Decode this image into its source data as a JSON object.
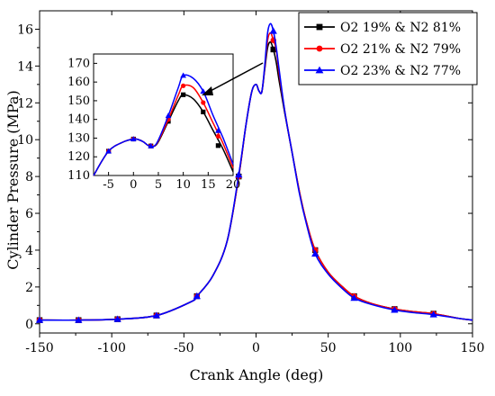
{
  "chart_data": {
    "type": "line",
    "xlabel": "Crank Angle (deg)",
    "ylabel": "Cylinder Pressure (MPa)",
    "xlim": [
      -150,
      150
    ],
    "ylim": [
      -0.5,
      17
    ],
    "x_ticks": [
      -150,
      -100,
      -50,
      0,
      50,
      100,
      150
    ],
    "y_ticks": [
      0,
      2,
      4,
      6,
      8,
      10,
      12,
      14,
      16
    ],
    "grid": false,
    "legend_position": "top-right",
    "series": [
      {
        "name": "O2 19% & N2 81%",
        "color": "#000000",
        "marker": "square",
        "points": [
          [
            -150,
            0.2
          ],
          [
            -123,
            0.2
          ],
          [
            -96,
            0.25
          ],
          [
            -69,
            0.45
          ],
          [
            -45,
            1.2
          ],
          [
            -41,
            1.5
          ],
          [
            -30,
            2.6
          ],
          [
            -20,
            4.5
          ],
          [
            -12,
            8.0
          ],
          [
            -7,
            10.8
          ],
          [
            -3,
            12.6
          ],
          [
            0,
            13.0
          ],
          [
            2,
            12.65
          ],
          [
            4,
            12.6
          ],
          [
            6,
            13.8
          ],
          [
            8,
            15.0
          ],
          [
            10,
            15.3
          ],
          [
            12,
            14.9
          ],
          [
            14,
            14.2
          ],
          [
            16,
            13.2
          ],
          [
            20,
            11.4
          ],
          [
            25,
            9.3
          ],
          [
            30,
            7.2
          ],
          [
            35,
            5.5
          ],
          [
            41,
            4.0
          ],
          [
            50,
            2.8
          ],
          [
            60,
            2.0
          ],
          [
            68,
            1.5
          ],
          [
            80,
            1.1
          ],
          [
            96,
            0.8
          ],
          [
            110,
            0.65
          ],
          [
            123,
            0.55
          ],
          [
            140,
            0.3
          ],
          [
            150,
            0.2
          ]
        ]
      },
      {
        "name": "O2 21% & N2 79%",
        "color": "#ff0000",
        "marker": "circle",
        "points": [
          [
            -150,
            0.2
          ],
          [
            -123,
            0.2
          ],
          [
            -96,
            0.25
          ],
          [
            -69,
            0.45
          ],
          [
            -45,
            1.2
          ],
          [
            -41,
            1.5
          ],
          [
            -30,
            2.6
          ],
          [
            -20,
            4.5
          ],
          [
            -12,
            8.0
          ],
          [
            -7,
            10.8
          ],
          [
            -3,
            12.6
          ],
          [
            0,
            13.0
          ],
          [
            2,
            12.65
          ],
          [
            4,
            12.6
          ],
          [
            6,
            13.9
          ],
          [
            8,
            15.4
          ],
          [
            10,
            15.8
          ],
          [
            12,
            15.4
          ],
          [
            14,
            14.9
          ],
          [
            16,
            13.6
          ],
          [
            20,
            11.5
          ],
          [
            25,
            9.3
          ],
          [
            30,
            7.2
          ],
          [
            35,
            5.5
          ],
          [
            41,
            4.0
          ],
          [
            50,
            2.8
          ],
          [
            60,
            2.0
          ],
          [
            68,
            1.5
          ],
          [
            80,
            1.1
          ],
          [
            96,
            0.8
          ],
          [
            110,
            0.65
          ],
          [
            123,
            0.55
          ],
          [
            140,
            0.3
          ],
          [
            150,
            0.2
          ]
        ]
      },
      {
        "name": "O2 23% & N2 77%",
        "color": "#0000ff",
        "marker": "triangle",
        "points": [
          [
            -150,
            0.2
          ],
          [
            -123,
            0.2
          ],
          [
            -96,
            0.25
          ],
          [
            -69,
            0.45
          ],
          [
            -45,
            1.2
          ],
          [
            -41,
            1.5
          ],
          [
            -30,
            2.6
          ],
          [
            -20,
            4.5
          ],
          [
            -12,
            8.1
          ],
          [
            -7,
            10.8
          ],
          [
            -3,
            12.6
          ],
          [
            0,
            13.0
          ],
          [
            2,
            12.65
          ],
          [
            4,
            12.6
          ],
          [
            6,
            14.0
          ],
          [
            8,
            15.8
          ],
          [
            10,
            16.3
          ],
          [
            12,
            15.9
          ],
          [
            14,
            15.0
          ],
          [
            16,
            13.8
          ],
          [
            20,
            11.5
          ],
          [
            25,
            9.3
          ],
          [
            30,
            7.1
          ],
          [
            35,
            5.4
          ],
          [
            41,
            3.8
          ],
          [
            50,
            2.7
          ],
          [
            60,
            1.9
          ],
          [
            68,
            1.4
          ],
          [
            80,
            1.05
          ],
          [
            96,
            0.75
          ],
          [
            110,
            0.6
          ],
          [
            123,
            0.5
          ],
          [
            140,
            0.3
          ],
          [
            150,
            0.2
          ]
        ]
      }
    ],
    "markers_x": [
      -150,
      -123,
      -96,
      -69,
      -41,
      -12,
      12,
      41,
      68,
      96,
      123
    ],
    "inset": {
      "xlim": [
        -8,
        20
      ],
      "ylim": [
        110,
        175
      ],
      "x_ticks": [
        -5,
        0,
        5,
        10,
        15,
        20
      ],
      "y_ticks": [
        110,
        120,
        130,
        140,
        150,
        160,
        170
      ],
      "series": [
        {
          "name": "O2 19% & N2 81%",
          "color": "#000000",
          "marker": "square",
          "points": [
            [
              -8,
              110
            ],
            [
              -5,
              123
            ],
            [
              -2,
              128
            ],
            [
              0,
              129.5
            ],
            [
              1,
              129.2
            ],
            [
              2,
              128
            ],
            [
              3,
              126
            ],
            [
              4,
              125.5
            ],
            [
              5,
              128
            ],
            [
              7,
              139
            ],
            [
              9,
              150
            ],
            [
              10,
              153.2
            ],
            [
              12,
              151
            ],
            [
              14,
              144
            ],
            [
              16,
              134
            ],
            [
              18,
              124
            ],
            [
              20,
              112
            ]
          ],
          "markers": [
            [
              -5,
              123
            ],
            [
              0,
              129.5
            ],
            [
              3.5,
              125.8
            ],
            [
              7,
              139
            ],
            [
              10,
              153.2
            ],
            [
              14,
              144
            ],
            [
              17,
              126
            ]
          ]
        },
        {
          "name": "O2 21% & N2 79%",
          "color": "#ff0000",
          "marker": "circle",
          "points": [
            [
              -8,
              110
            ],
            [
              -5,
              123
            ],
            [
              -2,
              128
            ],
            [
              0,
              129.5
            ],
            [
              1,
              129.2
            ],
            [
              2,
              128
            ],
            [
              3,
              126
            ],
            [
              4,
              125.5
            ],
            [
              5,
              128.5
            ],
            [
              7,
              140
            ],
            [
              9,
              153
            ],
            [
              10,
              158
            ],
            [
              12,
              157
            ],
            [
              14,
              149
            ],
            [
              16,
              138
            ],
            [
              18,
              127
            ],
            [
              20,
              114
            ]
          ],
          "markers": [
            [
              -5,
              123
            ],
            [
              0,
              129.5
            ],
            [
              3.5,
              125.8
            ],
            [
              7,
              140
            ],
            [
              10,
              158
            ],
            [
              14,
              149
            ],
            [
              17,
              131
            ]
          ]
        },
        {
          "name": "O2 23% & N2 77%",
          "color": "#0000ff",
          "marker": "triangle",
          "points": [
            [
              -8,
              110
            ],
            [
              -5,
              123
            ],
            [
              -2,
              128
            ],
            [
              0,
              129.5
            ],
            [
              1,
              129.2
            ],
            [
              2,
              128
            ],
            [
              3,
              126
            ],
            [
              4,
              125.5
            ],
            [
              5,
              129
            ],
            [
              7,
              142
            ],
            [
              9,
              157
            ],
            [
              10,
              163.5
            ],
            [
              12,
              162
            ],
            [
              14,
              155
            ],
            [
              16,
              142
            ],
            [
              18,
              130
            ],
            [
              20,
              116
            ]
          ],
          "markers": [
            [
              -5,
              123
            ],
            [
              0,
              129.5
            ],
            [
              3.5,
              125.8
            ],
            [
              7,
              142
            ],
            [
              10,
              163.5
            ],
            [
              14,
              155
            ],
            [
              17,
              134
            ]
          ]
        }
      ]
    }
  }
}
